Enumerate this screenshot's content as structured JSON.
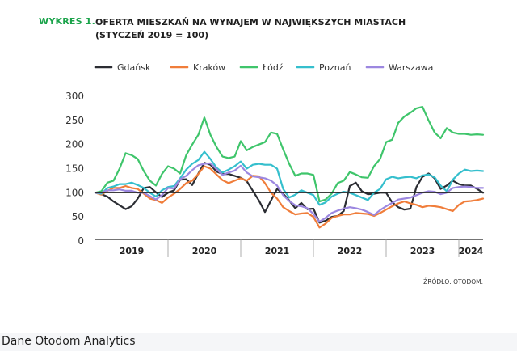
{
  "heading": {
    "label": "WYKRES 1.",
    "title_line1": "OFERTA MIESZKAŃ NA WYNAJEM W NAJWIĘKSZYCH MIASTACH",
    "title_line2": "(STYCZEŃ 2019 = 100)"
  },
  "footer": {
    "caption": "Dane Otodom Analytics"
  },
  "chart_data": {
    "type": "line",
    "source_note": "ŹRÓDŁO: OTODOM.",
    "legend_position": "top",
    "ylim": [
      0,
      300
    ],
    "yticks": [
      "0",
      "50",
      "100",
      "150",
      "200",
      "250",
      "300"
    ],
    "reference_line": 100,
    "x_start_month": "2019-01",
    "x_end_month": "2024-05",
    "year_labels": [
      {
        "label": "2019",
        "at_month": 6
      },
      {
        "label": "2020",
        "at_month": 18
      },
      {
        "label": "2021",
        "at_month": 30
      },
      {
        "label": "2022",
        "at_month": 42
      },
      {
        "label": "2023",
        "at_month": 54
      },
      {
        "label": "2024",
        "at_month": 62
      }
    ],
    "year_dividers": [
      12,
      24,
      36,
      48,
      60
    ],
    "colors": {
      "Gdańsk": "#2b2d33",
      "Kraków": "#f07d3a",
      "Łódź": "#3fc56b",
      "Poznań": "#35bfcd",
      "Warszawa": "#9c87e0"
    },
    "series": [
      {
        "name": "Gdańsk",
        "values": [
          100,
          97,
          92,
          82,
          74,
          66,
          72,
          88,
          110,
          112,
          101,
          91,
          100,
          105,
          127,
          128,
          116,
          140,
          162,
          158,
          144,
          139,
          139,
          135,
          131,
          124,
          104,
          84,
          60,
          84,
          108,
          98,
          84,
          68,
          79,
          66,
          67,
          38,
          42,
          50,
          52,
          62,
          114,
          121,
          103,
          97,
          98,
          100,
          100,
          80,
          70,
          65,
          67,
          112,
          133,
          140,
          130,
          108,
          115,
          125,
          118,
          115,
          115,
          108,
          100
        ]
      },
      {
        "name": "Kraków",
        "values": [
          100,
          96,
          104,
          110,
          110,
          114,
          110,
          108,
          98,
          88,
          85,
          79,
          90,
          98,
          108,
          120,
          125,
          139,
          155,
          150,
          138,
          126,
          120,
          125,
          130,
          125,
          135,
          134,
          120,
          100,
          88,
          70,
          62,
          55,
          57,
          58,
          50,
          28,
          36,
          48,
          52,
          55,
          55,
          58,
          57,
          56,
          52,
          58,
          65,
          72,
          78,
          82,
          78,
          75,
          70,
          73,
          72,
          70,
          66,
          62,
          75,
          82,
          83,
          85,
          88
        ]
      },
      {
        "name": "Łódź",
        "values": [
          100,
          103,
          121,
          125,
          150,
          182,
          178,
          170,
          145,
          125,
          115,
          139,
          155,
          150,
          140,
          178,
          200,
          220,
          256,
          220,
          195,
          175,
          172,
          175,
          207,
          188,
          195,
          200,
          205,
          225,
          222,
          190,
          160,
          135,
          140,
          140,
          137,
          82,
          86,
          98,
          120,
          125,
          143,
          138,
          132,
          131,
          155,
          170,
          205,
          210,
          245,
          258,
          266,
          275,
          278,
          250,
          225,
          213,
          234,
          225,
          222,
          222,
          220,
          221,
          220
        ]
      },
      {
        "name": "Poznań",
        "values": [
          100,
          98,
          110,
          113,
          118,
          118,
          121,
          116,
          110,
          100,
          92,
          105,
          112,
          114,
          130,
          148,
          160,
          168,
          185,
          170,
          152,
          142,
          148,
          155,
          165,
          150,
          158,
          160,
          158,
          158,
          150,
          108,
          90,
          96,
          105,
          100,
          95,
          75,
          80,
          92,
          98,
          102,
          100,
          95,
          90,
          85,
          100,
          108,
          128,
          133,
          130,
          132,
          133,
          130,
          136,
          138,
          132,
          115,
          103,
          127,
          140,
          148,
          145,
          146,
          145
        ]
      },
      {
        "name": "Warszawa",
        "values": [
          100,
          100,
          105,
          105,
          107,
          104,
          104,
          100,
          100,
          93,
          86,
          95,
          110,
          109,
          128,
          135,
          147,
          157,
          160,
          161,
          149,
          137,
          142,
          146,
          156,
          142,
          134,
          132,
          130,
          125,
          115,
          95,
          83,
          74,
          72,
          68,
          56,
          40,
          48,
          58,
          63,
          67,
          70,
          68,
          65,
          60,
          54,
          64,
          72,
          79,
          86,
          88,
          90,
          95,
          100,
          103,
          102,
          97,
          100,
          110,
          112,
          113,
          112,
          110,
          110
        ]
      }
    ]
  }
}
